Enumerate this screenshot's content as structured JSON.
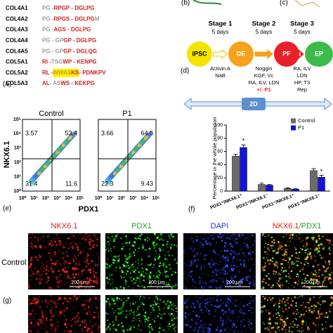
{
  "panel_labels": {
    "a": "(a)",
    "b": "(b)",
    "c": "(c)",
    "d": "(d)",
    "e": "(e)",
    "f": "(f)",
    "g": "(g)"
  },
  "sequences": [
    {
      "name": "COL4A1",
      "segments": [
        {
          "text": "PG - ",
          "color": "#9a9a9a"
        },
        {
          "text": "RPGP - DGLPG",
          "color": "#d0201a"
        }
      ]
    },
    {
      "name": "COL4A2",
      "segments": [
        {
          "text": "PG - ",
          "color": "#9a9a9a"
        },
        {
          "text": "RPGS - DGLPG",
          "color": "#d0201a"
        },
        {
          "text": "M",
          "color": "#9a9a9a"
        }
      ]
    },
    {
      "name": "COL4A3",
      "segments": [
        {
          "text": "PG - ",
          "color": "#9a9a9a"
        },
        {
          "text": "AGS - DGLPG",
          "color": "#d0201a"
        }
      ]
    },
    {
      "name": "COL4A4",
      "segments": [
        {
          "text": "PG - GP",
          "color": "#9a9a9a"
        },
        {
          "text": "GP - DGLPG",
          "color": "#d0201a"
        }
      ]
    },
    {
      "name": "COL4A5",
      "segments": [
        {
          "text": "PG - GP",
          "color": "#9a9a9a"
        },
        {
          "text": "GP - DGLQG",
          "color": "#d0201a"
        }
      ]
    },
    {
      "name": "COL5A1",
      "segments": [
        {
          "text": "RI - ",
          "color": "#d0201a"
        },
        {
          "text": "TSG",
          "color": "#9a9a9a"
        },
        {
          "text": "WP - KENPG",
          "color": "#d0201a"
        }
      ]
    },
    {
      "name": "COL5A2",
      "segments": [
        {
          "text": "RL - ",
          "color": "#d0201a"
        },
        {
          "text": "WWAS",
          "color": "#c8a000",
          "highlight": "#fff200"
        },
        {
          "text": "KS",
          "color": "#d0201a",
          "highlight": "#fff200"
        },
        {
          "text": " - PDNKPV",
          "color": "#d0201a"
        }
      ]
    },
    {
      "name": "COL5A3",
      "segments": [
        {
          "text": "AL",
          "color": "#d0201a"
        },
        {
          "text": " - AS",
          "color": "#9a9a9a"
        },
        {
          "text": "WS - KEKPG",
          "color": "#d0201a"
        }
      ]
    }
  ],
  "protocol": {
    "stages": [
      {
        "name": "Stage 1",
        "duration": "5 days",
        "factors": [
          "Activin A",
          "NaB"
        ]
      },
      {
        "name": "Stage 2",
        "duration": "5 days",
        "factors": [
          "Noggin",
          "KGF, Vc",
          "RA, ILV, LDN",
          "+/- P1"
        ]
      },
      {
        "name": "Stage 3",
        "duration": "5 days",
        "factors": [
          "RA, ILV",
          "LDN",
          "HP, T3",
          "Rep"
        ]
      }
    ],
    "cells": [
      {
        "label": "iPSC",
        "color": "#f5e400"
      },
      {
        "label": "DE",
        "color": "#f7a21b"
      },
      {
        "label": "PF",
        "color": "#e8202a"
      },
      {
        "label": "EP",
        "color": "#3dbb4a"
      }
    ],
    "culture": "2D"
  },
  "flow": {
    "ylabel": "NKX6.1",
    "xlabel": "PDX1",
    "tick_labels": [
      "10⁰",
      "10¹",
      "10²",
      "10³",
      "10⁴",
      "10⁵"
    ],
    "panels": [
      {
        "title": "Control",
        "quadrants": [
          3.57,
          53.4,
          31.4,
          11.6
        ]
      },
      {
        "title": "P1",
        "quadrants": [
          3.66,
          64.6,
          22.3,
          9.43
        ]
      }
    ]
  },
  "chart_data": {
    "type": "bar",
    "ylabel": "Percentage in the whole population",
    "categories": [
      "PDX1⁺/NKX6.1⁺",
      "PDX1⁺/NKX6.1⁻",
      "PDX1⁻/NKX6.1⁺",
      "PDX1⁻/NKX6.1⁻"
    ],
    "series": [
      {
        "name": "Control",
        "color": "#6b6b6b",
        "values": [
          53,
          10,
          4,
          31
        ],
        "errors": [
          3,
          2,
          1,
          3
        ]
      },
      {
        "name": "P1",
        "color": "#1414d8",
        "values": [
          66,
          9,
          3,
          21
        ],
        "errors": [
          4,
          1,
          0.5,
          3
        ]
      }
    ],
    "annotations": [
      "*",
      "*"
    ],
    "ylim": [
      0,
      100
    ],
    "yticks": [
      0,
      20,
      40,
      60,
      80,
      100
    ],
    "legend": "top-right"
  },
  "microscopy": {
    "columns": [
      [
        {
          "text": "NKX6.1",
          "color": "#e0201a"
        }
      ],
      [
        {
          "text": "PDX1",
          "color": "#20a020"
        }
      ],
      [
        {
          "text": "DAPI",
          "color": "#2030d0"
        }
      ],
      [
        {
          "text": "NKX6.1",
          "color": "#e0201a"
        },
        {
          "text": "/PDX1",
          "color": "#20a020"
        }
      ]
    ],
    "rows": [
      "Control"
    ],
    "scale_bar": "200 μm"
  }
}
